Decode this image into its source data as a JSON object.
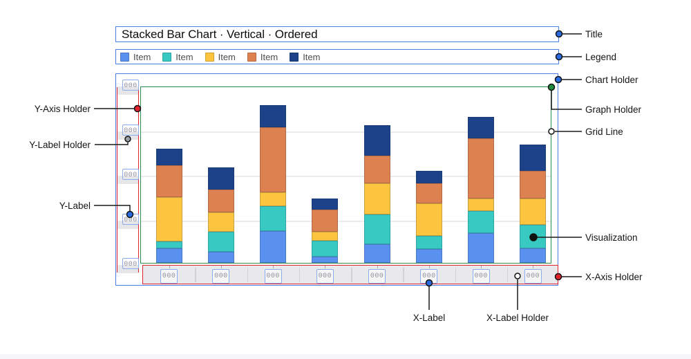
{
  "page": {
    "title_text": "Stacked Bar Chart · Vertical · Ordered"
  },
  "legend": {
    "items": [
      {
        "label": "Item",
        "color": "#5b91ee"
      },
      {
        "label": "Item",
        "color": "#38cac2"
      },
      {
        "label": "Item",
        "color": "#fdc43f"
      },
      {
        "label": "Item",
        "color": "#de8150"
      },
      {
        "label": "Item",
        "color": "#1d428a"
      }
    ]
  },
  "axes": {
    "y_labels": [
      "000",
      "000",
      "000",
      "000",
      "000"
    ],
    "x_labels": [
      "000",
      "000",
      "000",
      "000",
      "000",
      "000",
      "000",
      "000"
    ]
  },
  "annotations": {
    "title": "Title",
    "legend": "Legend",
    "chart_holder": "Chart Holder",
    "graph_holder": "Graph Holder",
    "grid_line": "Grid Line",
    "visualization": "Visualization",
    "x_axis_holder": "X-Axis Holder",
    "y_axis_holder": "Y-Axis Holder",
    "y_label_holder": "Y-Label Holder",
    "y_label": "Y-Label",
    "x_label": "X-Label",
    "x_label_holder": "X-Label Holder"
  },
  "colors": {
    "holder_border_blue": "#4b7fe1",
    "axis_holder_red": "#e0222f",
    "graph_holder_green": "#2e8b4f",
    "label_box_border": "#8aade9",
    "axis_background": "#e9e9ec",
    "grid": "#ebebed",
    "label_text": "#8e929a",
    "dot_blue": "#2a6be0",
    "dot_green": "#1e8a3c",
    "dot_red": "#e0222f",
    "dot_gray": "#9aa0a8",
    "dot_white": "#ffffff",
    "dot_black": "#111111"
  },
  "chart_data": {
    "type": "bar",
    "stacked": true,
    "orientation": "vertical",
    "title": "Stacked Bar Chart · Vertical · Ordered",
    "categories": [
      "000",
      "000",
      "000",
      "000",
      "000",
      "000",
      "000",
      "000"
    ],
    "series": [
      {
        "name": "Item",
        "color": "#5b91ee",
        "values": [
          8.2,
          6.3,
          18.0,
          3.5,
          10.5,
          7.8,
          16.8,
          8.2
        ]
      },
      {
        "name": "Item",
        "color": "#38cac2",
        "values": [
          3.9,
          11.3,
          14.1,
          9.0,
          16.8,
          7.4,
          12.5,
          13.3
        ]
      },
      {
        "name": "Item",
        "color": "#fdc43f",
        "values": [
          25.0,
          10.9,
          7.8,
          5.1,
          17.6,
          18.4,
          7.0,
          14.8
        ]
      },
      {
        "name": "Item",
        "color": "#de8150",
        "values": [
          18.0,
          12.9,
          36.7,
          12.5,
          15.6,
          11.3,
          34.0,
          15.6
        ]
      },
      {
        "name": "Item",
        "color": "#1d428a",
        "values": [
          9.4,
          12.5,
          12.5,
          6.3,
          17.2,
          7.0,
          12.1,
          14.8
        ]
      }
    ],
    "series_order": "bottom-to-top",
    "ylim": [
      0,
      100
    ],
    "grid": true,
    "legend_position": "top"
  }
}
